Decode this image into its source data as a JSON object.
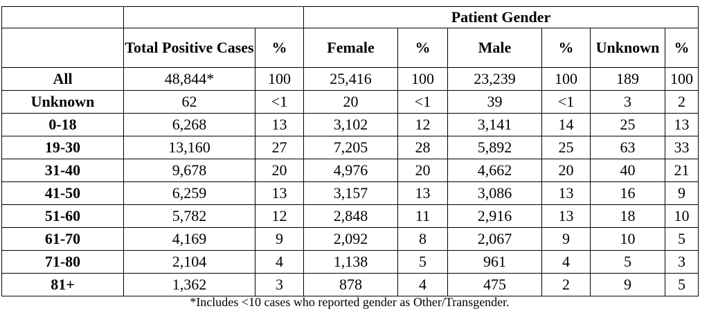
{
  "header": {
    "group_label": "Patient Gender",
    "total_label": "Total Positive Cases",
    "pct": "%",
    "female": "Female",
    "male": "Male",
    "unknown": "Unknown"
  },
  "rows": [
    {
      "label": "All",
      "total": "48,844*",
      "total_pct": "100",
      "female": "25,416",
      "female_pct": "100",
      "male": "23,239",
      "male_pct": "100",
      "unknown": "189",
      "unknown_pct": "100"
    },
    {
      "label": "Unknown",
      "total": "62",
      "total_pct": "<1",
      "female": "20",
      "female_pct": "<1",
      "male": "39",
      "male_pct": "<1",
      "unknown": "3",
      "unknown_pct": "2"
    },
    {
      "label": "0-18",
      "total": "6,268",
      "total_pct": "13",
      "female": "3,102",
      "female_pct": "12",
      "male": "3,141",
      "male_pct": "14",
      "unknown": "25",
      "unknown_pct": "13"
    },
    {
      "label": "19-30",
      "total": "13,160",
      "total_pct": "27",
      "female": "7,205",
      "female_pct": "28",
      "male": "5,892",
      "male_pct": "25",
      "unknown": "63",
      "unknown_pct": "33"
    },
    {
      "label": "31-40",
      "total": "9,678",
      "total_pct": "20",
      "female": "4,976",
      "female_pct": "20",
      "male": "4,662",
      "male_pct": "20",
      "unknown": "40",
      "unknown_pct": "21"
    },
    {
      "label": "41-50",
      "total": "6,259",
      "total_pct": "13",
      "female": "3,157",
      "female_pct": "13",
      "male": "3,086",
      "male_pct": "13",
      "unknown": "16",
      "unknown_pct": "9"
    },
    {
      "label": "51-60",
      "total": "5,782",
      "total_pct": "12",
      "female": "2,848",
      "female_pct": "11",
      "male": "2,916",
      "male_pct": "13",
      "unknown": "18",
      "unknown_pct": "10"
    },
    {
      "label": "61-70",
      "total": "4,169",
      "total_pct": "9",
      "female": "2,092",
      "female_pct": "8",
      "male": "2,067",
      "male_pct": "9",
      "unknown": "10",
      "unknown_pct": "5"
    },
    {
      "label": "71-80",
      "total": "2,104",
      "total_pct": "4",
      "female": "1,138",
      "female_pct": "5",
      "male": "961",
      "male_pct": "4",
      "unknown": "5",
      "unknown_pct": "3"
    },
    {
      "label": "81+",
      "total": "1,362",
      "total_pct": "3",
      "female": "878",
      "female_pct": "4",
      "male": "475",
      "male_pct": "2",
      "unknown": "9",
      "unknown_pct": "5"
    }
  ],
  "footnote": "*Includes <10 cases who reported gender as Other/Transgender."
}
